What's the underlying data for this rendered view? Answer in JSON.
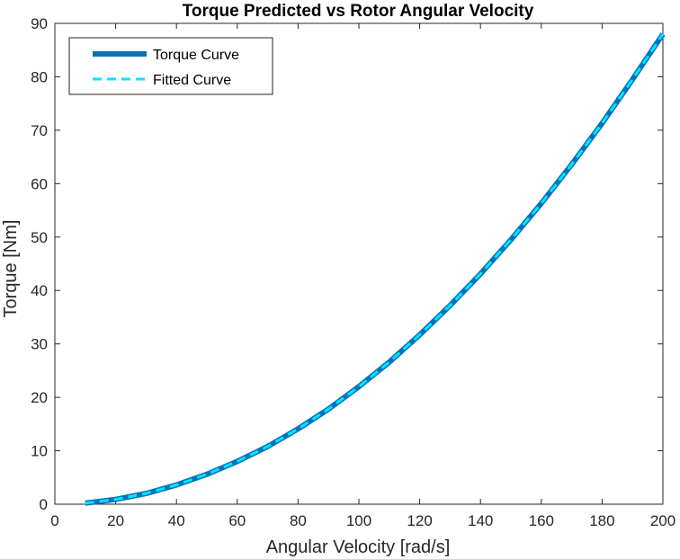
{
  "chart_data": {
    "type": "line",
    "title": "Torque Predicted vs Rotor Angular Velocity",
    "xlabel": "Angular Velocity [rad/s]",
    "ylabel": "Torque [Nm]",
    "xlim": [
      0,
      200
    ],
    "ylim": [
      0,
      90
    ],
    "xticks": [
      0,
      20,
      40,
      60,
      80,
      100,
      120,
      140,
      160,
      180,
      200
    ],
    "yticks": [
      0,
      10,
      20,
      30,
      40,
      50,
      60,
      70,
      80,
      90
    ],
    "grid": false,
    "legend_position": "top-left",
    "x": [
      10,
      20,
      30,
      40,
      50,
      60,
      70,
      80,
      90,
      100,
      110,
      120,
      130,
      140,
      150,
      160,
      170,
      180,
      190,
      200
    ],
    "series": [
      {
        "name": "Torque Curve",
        "color": "#0072BD",
        "style": "solid",
        "values": [
          0.2,
          0.9,
          2.0,
          3.6,
          5.6,
          8.0,
          10.8,
          14.1,
          17.8,
          22.0,
          26.6,
          31.7,
          37.2,
          43.1,
          49.5,
          56.3,
          63.6,
          71.3,
          79.5,
          88.0
        ]
      },
      {
        "name": "Fitted Curve",
        "color": "#00E5FF",
        "style": "dashed",
        "values": [
          0.2,
          0.9,
          2.0,
          3.6,
          5.6,
          8.0,
          10.8,
          14.1,
          17.8,
          22.0,
          26.6,
          31.7,
          37.2,
          43.1,
          49.5,
          56.3,
          63.6,
          71.3,
          79.5,
          88.0
        ]
      }
    ]
  }
}
